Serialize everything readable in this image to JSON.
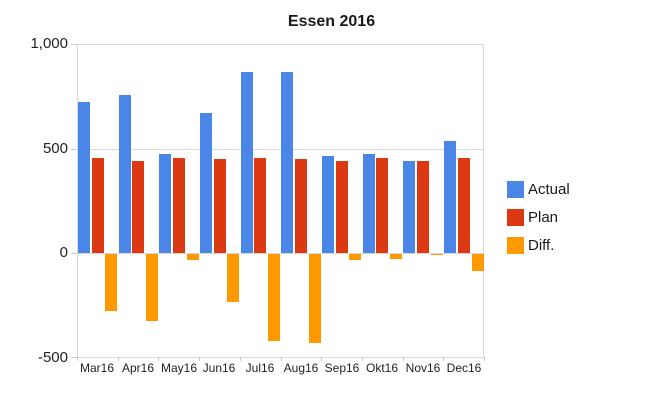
{
  "title": "Essen 2016",
  "chart_data": {
    "type": "bar",
    "title": "Essen 2016",
    "categories": [
      "Mar16",
      "Apr16",
      "May16",
      "Jun16",
      "Jul16",
      "Aug16",
      "Sep16",
      "Okt16",
      "Nov16",
      "Dec16"
    ],
    "series": [
      {
        "name": "Actual",
        "color": "#4a86e8",
        "values": [
          720,
          755,
          475,
          670,
          865,
          865,
          465,
          475,
          440,
          535
        ]
      },
      {
        "name": "Plan",
        "color": "#dc3912",
        "values": [
          455,
          440,
          455,
          450,
          455,
          450,
          440,
          455,
          440,
          455
        ]
      },
      {
        "name": "Diff.",
        "color": "#ff9900",
        "values": [
          -270,
          -320,
          -30,
          -230,
          -415,
          -425,
          -30,
          -25,
          -5,
          -80
        ]
      }
    ],
    "xlabel": "",
    "ylabel": "",
    "ylim": [
      -500,
      1000
    ],
    "yticks": [
      1000,
      500,
      0,
      -500
    ],
    "ytick_labels": [
      "1,000",
      "500",
      "0",
      "-500"
    ],
    "grid": true,
    "legend_position": "right",
    "colors": {
      "grid": "#d9d9d9",
      "axis_text": "#222222",
      "background": "#ffffff"
    }
  }
}
